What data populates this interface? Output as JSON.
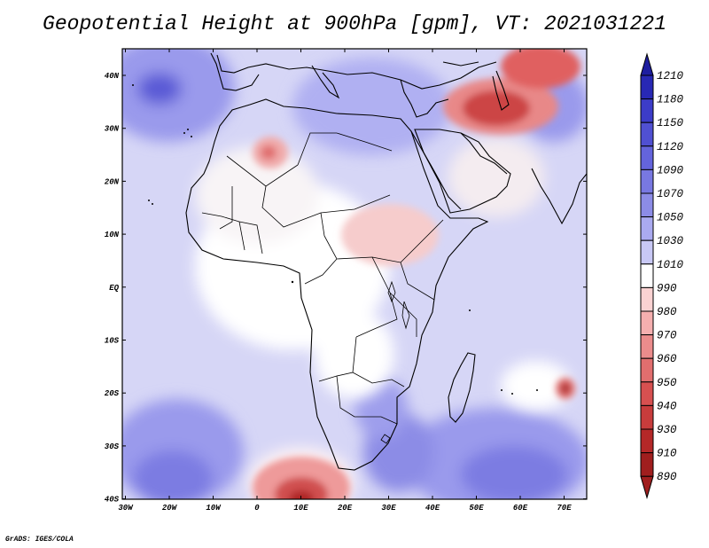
{
  "title": "Geopotential Height at 900hPa [gpm], VT: 2021031221",
  "footer": "GrADS: IGES/COLA",
  "x_ticks": [
    "30W",
    "20W",
    "10W",
    "0",
    "10E",
    "20E",
    "30E",
    "40E",
    "50E",
    "60E",
    "70E"
  ],
  "y_ticks": [
    "40N",
    "30N",
    "20N",
    "10N",
    "EQ",
    "10S",
    "20S",
    "30S",
    "40S"
  ],
  "colorbar": {
    "levels": [
      "1210",
      "1180",
      "1150",
      "1120",
      "1090",
      "1070",
      "1050",
      "1030",
      "1010",
      "990",
      "980",
      "970",
      "960",
      "950",
      "940",
      "930",
      "910",
      "890"
    ],
    "colors": [
      "#1e1ea0",
      "#2828b4",
      "#3c3cc8",
      "#5050d2",
      "#6464dc",
      "#7878e1",
      "#8c8ce6",
      "#aaaaf0",
      "#c8c8f5",
      "#ffffff",
      "#fad2d2",
      "#f5afaf",
      "#eb8c8c",
      "#e16e6e",
      "#d75050",
      "#c83c3c",
      "#b42828",
      "#a01e1e"
    ]
  }
}
